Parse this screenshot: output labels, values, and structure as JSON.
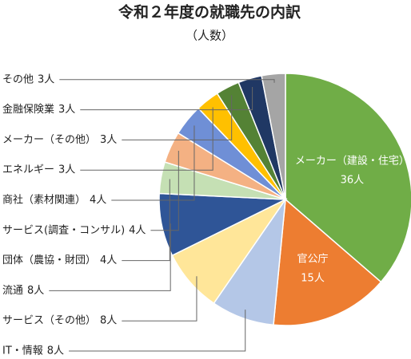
{
  "chart_data": {
    "type": "pie",
    "title": "令和２年度の就職先の内訳",
    "subtitle": "（人数）",
    "categories": [
      "メーカー（建設・住宅）",
      "官公庁",
      "IT・情報",
      "サービス（その他）",
      "流通",
      "団体（農協・財団）",
      "サービス(調査・コンサル)",
      "商社（素材関連）",
      "エネルギー",
      "メーカー（その他）",
      "金融保険業",
      "その他"
    ],
    "values": [
      36,
      15,
      8,
      8,
      8,
      4,
      4,
      4,
      3,
      3,
      3,
      3
    ],
    "value_labels": [
      "36人",
      "15人",
      "8人",
      "8人",
      "8人",
      "4人",
      "4人",
      "4人",
      "3人",
      "3人",
      "3人",
      "3人"
    ],
    "colors": [
      "#70ad47",
      "#ed7d31",
      "#b4c7e7",
      "#ffe699",
      "#2f5597",
      "#c5e0b4",
      "#f4b183",
      "#6f8fd6",
      "#ffc000",
      "#548235",
      "#203864",
      "#a5a5a5"
    ]
  }
}
